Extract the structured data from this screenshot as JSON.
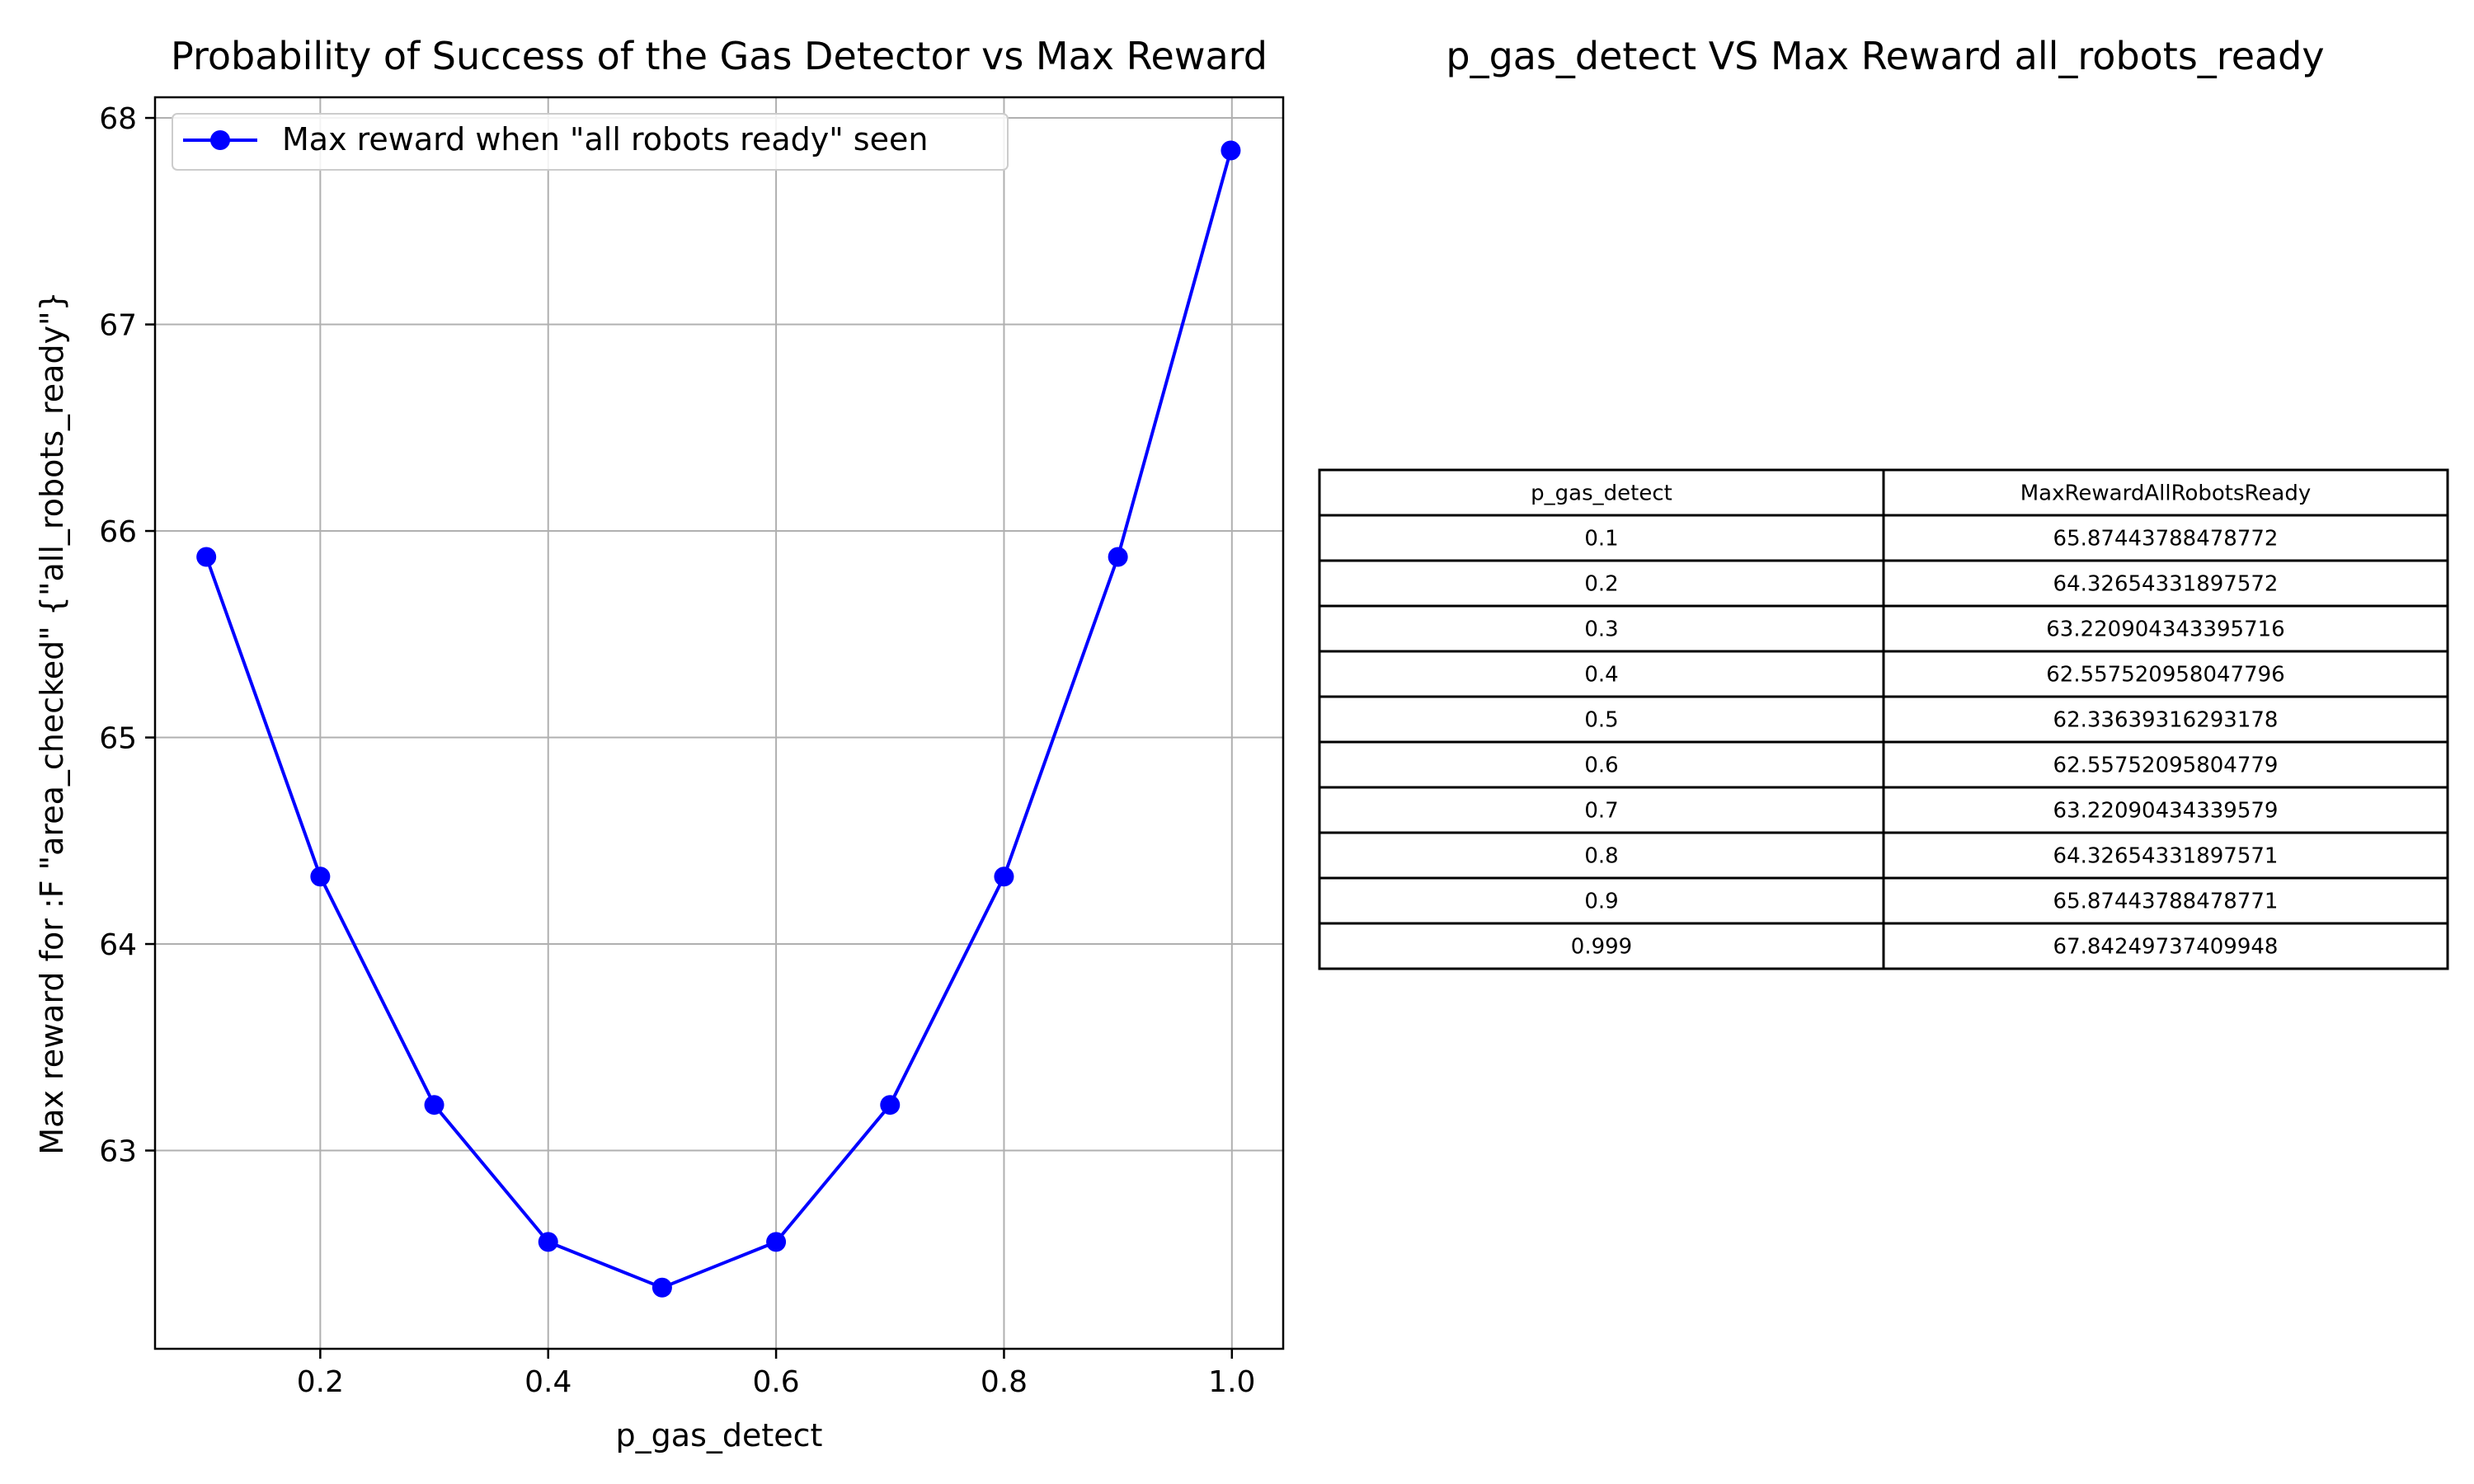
{
  "chart_data": [
    {
      "type": "line",
      "title": "Probability of Success of the Gas Detector vs Max Reward",
      "xlabel": "p_gas_detect",
      "ylabel": "Max reward for :F \"area_checked\" {\"all_robots_ready\"}",
      "xlim": [
        0.055,
        1.045
      ],
      "ylim": [
        62.04,
        68.1
      ],
      "xticks": [
        "0.2",
        "0.4",
        "0.6",
        "0.8",
        "1.0"
      ],
      "yticks": [
        "63",
        "64",
        "65",
        "66",
        "67",
        "68"
      ],
      "grid": true,
      "legend_position": "top-left",
      "series": [
        {
          "name": "Max reward when \"all robots ready\" seen",
          "color": "#0000ff",
          "marker": "circle",
          "x": [
            0.1,
            0.2,
            0.3,
            0.4,
            0.5,
            0.6,
            0.7,
            0.8,
            0.9,
            0.999
          ],
          "y": [
            65.87443788478772,
            64.32654331897572,
            63.220904343395716,
            62.557520958047796,
            62.33639316293178,
            62.55752095804779,
            63.22090434339579,
            64.32654331897571,
            65.87443788478771,
            67.84249737409948
          ]
        }
      ]
    },
    {
      "type": "table",
      "title": "p_gas_detect VS Max Reward all_robots_ready",
      "columns": [
        "p_gas_detect",
        "MaxRewardAllRobotsReady"
      ],
      "rows": [
        [
          "0.1",
          "65.87443788478772"
        ],
        [
          "0.2",
          "64.32654331897572"
        ],
        [
          "0.3",
          "63.220904343395716"
        ],
        [
          "0.4",
          "62.557520958047796"
        ],
        [
          "0.5",
          "62.33639316293178"
        ],
        [
          "0.6",
          "62.55752095804779"
        ],
        [
          "0.7",
          "63.22090434339579"
        ],
        [
          "0.8",
          "64.32654331897571"
        ],
        [
          "0.9",
          "65.87443788478771"
        ],
        [
          "0.999",
          "67.84249737409948"
        ]
      ]
    }
  ]
}
